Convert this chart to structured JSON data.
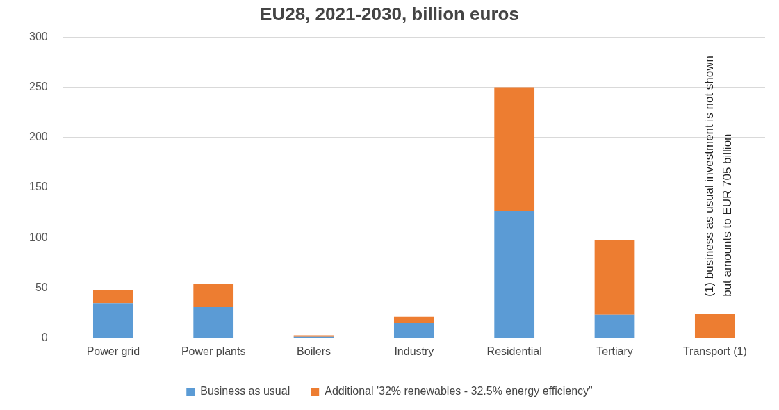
{
  "chart_data": {
    "type": "bar",
    "title": "EU28, 2021-2030, billion euros",
    "categories": [
      "Power grid",
      "Power plants",
      "Boilers",
      "Industry",
      "Residential",
      "Tertiary",
      "Transport (1)"
    ],
    "series": [
      {
        "name": "Business as usual",
        "color": "#5b9bd5",
        "values": [
          35,
          31,
          1.5,
          15,
          127,
          23.5,
          0
        ]
      },
      {
        "name": "Additional '32% renewables - 32.5% energy efficiency\"",
        "color": "#ed7d31",
        "values": [
          13,
          23,
          1.5,
          6.5,
          123,
          74,
          24
        ]
      }
    ],
    "stacked": true,
    "ylim": [
      0,
      300
    ],
    "yticks": [
      0,
      50,
      100,
      150,
      200,
      250,
      300
    ],
    "grid": "y",
    "legend": "bottom",
    "annotations": [
      "(1) business as usual investment is not shown",
      "but amounts to EUR 705 billion"
    ]
  }
}
